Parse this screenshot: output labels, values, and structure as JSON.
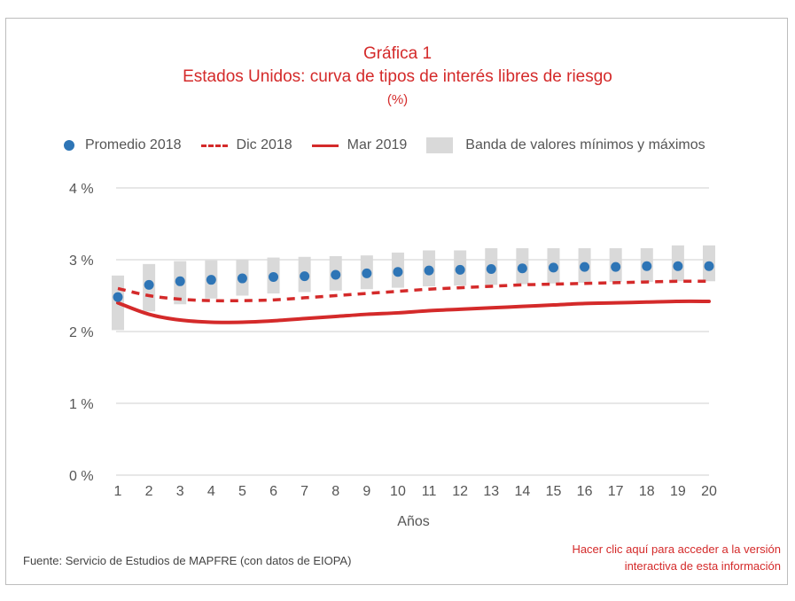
{
  "header": {
    "title": "Gráfica 1",
    "subtitle": "Estados Unidos: curva de tipos de interés libres de riesgo",
    "unit": "(%)"
  },
  "legend": {
    "promedio": "Promedio 2018",
    "dic": "Dic 2018",
    "mar": "Mar 2019",
    "banda": "Banda de valores mínimos y máximos"
  },
  "footer": {
    "source": "Fuente: Servicio de Estudios de MAPFRE (con datos de EIOPA)",
    "link_line1": "Hacer clic aquí para acceder a la versión",
    "link_line2": "interactiva de esta información"
  },
  "colors": {
    "red": "#d42a2a",
    "blue": "#2e75b6",
    "band": "#d9d9d9",
    "grid": "#cfcfcf"
  },
  "chart_data": {
    "type": "line",
    "xlabel": "Años",
    "ylabel": "",
    "x": [
      1,
      2,
      3,
      4,
      5,
      6,
      7,
      8,
      9,
      10,
      11,
      12,
      13,
      14,
      15,
      16,
      17,
      18,
      19,
      20
    ],
    "ylim": [
      0,
      4
    ],
    "yticks": [
      0,
      1,
      2,
      3,
      4
    ],
    "ytick_labels": [
      "0 %",
      "1 %",
      "2 %",
      "3 %",
      "4 %"
    ],
    "grid": true,
    "legend_position": "top",
    "series": [
      {
        "name": "Promedio 2018",
        "style": "dots",
        "values": [
          2.48,
          2.65,
          2.7,
          2.72,
          2.74,
          2.76,
          2.77,
          2.79,
          2.81,
          2.83,
          2.85,
          2.86,
          2.87,
          2.88,
          2.89,
          2.9,
          2.9,
          2.91,
          2.91,
          2.91
        ]
      },
      {
        "name": "Dic 2018",
        "style": "dashed",
        "values": [
          2.6,
          2.5,
          2.45,
          2.43,
          2.43,
          2.44,
          2.47,
          2.5,
          2.53,
          2.56,
          2.59,
          2.61,
          2.63,
          2.65,
          2.66,
          2.67,
          2.68,
          2.69,
          2.7,
          2.7
        ]
      },
      {
        "name": "Mar 2019",
        "style": "solid",
        "values": [
          2.4,
          2.24,
          2.16,
          2.13,
          2.13,
          2.15,
          2.18,
          2.21,
          2.24,
          2.26,
          2.29,
          2.31,
          2.33,
          2.35,
          2.37,
          2.39,
          2.4,
          2.41,
          2.42,
          2.42
        ]
      },
      {
        "name": "Banda de valores mínimos y máximos",
        "style": "band",
        "min": [
          2.02,
          2.28,
          2.38,
          2.46,
          2.5,
          2.53,
          2.55,
          2.57,
          2.59,
          2.61,
          2.63,
          2.64,
          2.65,
          2.66,
          2.67,
          2.68,
          2.69,
          2.69,
          2.7,
          2.7
        ],
        "max": [
          2.78,
          2.94,
          2.98,
          2.99,
          3.0,
          3.03,
          3.04,
          3.05,
          3.06,
          3.1,
          3.13,
          3.13,
          3.16,
          3.16,
          3.16,
          3.16,
          3.16,
          3.16,
          3.2,
          3.2
        ]
      }
    ]
  }
}
